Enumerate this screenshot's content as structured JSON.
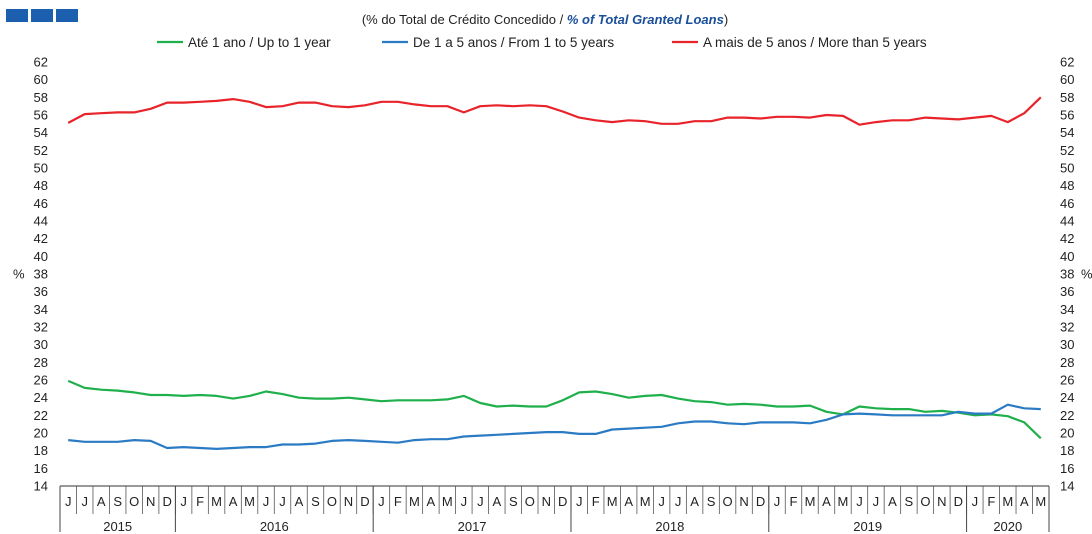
{
  "logo": {
    "colors": [
      "#1b5fae",
      "#1b5fae",
      "#1b5fae"
    ]
  },
  "title": {
    "prefix": "(% do Total de Crédito Concedido  / ",
    "emphasis": "% of Total Granted Loans",
    "suffix": ")"
  },
  "chart_data": {
    "type": "line",
    "ylabel_left": "%",
    "ylabel_right": "%",
    "ylim": [
      14,
      62
    ],
    "yticks": [
      14,
      16,
      18,
      20,
      22,
      24,
      26,
      28,
      30,
      32,
      34,
      36,
      38,
      40,
      42,
      44,
      46,
      48,
      50,
      52,
      54,
      56,
      58,
      60,
      62
    ],
    "months": [
      "J",
      "J",
      "A",
      "S",
      "O",
      "N",
      "D",
      "J",
      "F",
      "M",
      "A",
      "M",
      "J",
      "J",
      "A",
      "S",
      "O",
      "N",
      "D",
      "J",
      "F",
      "M",
      "A",
      "M",
      "J",
      "J",
      "A",
      "S",
      "O",
      "N",
      "D",
      "J",
      "F",
      "M",
      "A",
      "M",
      "J",
      "J",
      "A",
      "S",
      "O",
      "N",
      "D",
      "J",
      "F",
      "M",
      "A",
      "M",
      "J",
      "J",
      "A",
      "S",
      "O",
      "N",
      "D",
      "J",
      "F",
      "M",
      "A",
      "M"
    ],
    "years": [
      {
        "label": "2015",
        "start": 0,
        "count": 7
      },
      {
        "label": "2016",
        "start": 7,
        "count": 12
      },
      {
        "label": "2017",
        "start": 19,
        "count": 12
      },
      {
        "label": "2018",
        "start": 31,
        "count": 12
      },
      {
        "label": "2019",
        "start": 43,
        "count": 12
      },
      {
        "label": "2020",
        "start": 55,
        "count": 5
      }
    ],
    "series": [
      {
        "name": "Até 1 ano / Up to 1 year",
        "color": "#1fb04b",
        "values": [
          25.9,
          25.1,
          24.9,
          24.8,
          24.6,
          24.3,
          24.3,
          24.2,
          24.3,
          24.2,
          23.9,
          24.2,
          24.7,
          24.4,
          24.0,
          23.9,
          23.9,
          24.0,
          23.8,
          23.6,
          23.7,
          23.7,
          23.7,
          23.8,
          24.2,
          23.4,
          23.0,
          23.1,
          23.0,
          23.0,
          23.7,
          24.6,
          24.7,
          24.4,
          24.0,
          24.2,
          24.3,
          23.9,
          23.6,
          23.5,
          23.2,
          23.3,
          23.2,
          23.0,
          23.0,
          23.1,
          22.4,
          22.1,
          23.0,
          22.8,
          22.7,
          22.7,
          22.4,
          22.5,
          22.3,
          22.0,
          22.1,
          21.9,
          21.2,
          19.4
        ]
      },
      {
        "name": "De 1 a 5 anos / From 1 to 5 years",
        "color": "#2b7bc4",
        "values": [
          19.2,
          19.0,
          19.0,
          19.0,
          19.2,
          19.1,
          18.3,
          18.4,
          18.3,
          18.2,
          18.3,
          18.4,
          18.4,
          18.7,
          18.7,
          18.8,
          19.1,
          19.2,
          19.1,
          19.0,
          18.9,
          19.2,
          19.3,
          19.3,
          19.6,
          19.7,
          19.8,
          19.9,
          20.0,
          20.1,
          20.1,
          19.9,
          19.9,
          20.4,
          20.5,
          20.6,
          20.7,
          21.1,
          21.3,
          21.3,
          21.1,
          21.0,
          21.2,
          21.2,
          21.2,
          21.1,
          21.5,
          22.1,
          22.2,
          22.1,
          22.0,
          22.0,
          22.0,
          22.0,
          22.4,
          22.2,
          22.2,
          23.2,
          22.8,
          22.7
        ]
      },
      {
        "name": "A mais de 5 anos / More than 5 years",
        "color": "#e8232a",
        "values": [
          55.1,
          56.1,
          56.2,
          56.3,
          56.3,
          56.7,
          57.4,
          57.4,
          57.5,
          57.6,
          57.8,
          57.5,
          56.9,
          57.0,
          57.4,
          57.4,
          57.0,
          56.9,
          57.1,
          57.5,
          57.5,
          57.2,
          57.0,
          57.0,
          56.3,
          57.0,
          57.1,
          57.0,
          57.1,
          57.0,
          56.4,
          55.7,
          55.4,
          55.2,
          55.4,
          55.3,
          55.0,
          55.0,
          55.3,
          55.3,
          55.7,
          55.7,
          55.6,
          55.8,
          55.8,
          55.7,
          56.0,
          55.9,
          54.9,
          55.2,
          55.4,
          55.4,
          55.7,
          55.6,
          55.5,
          55.7,
          55.9,
          55.2,
          56.2,
          58.0
        ]
      }
    ]
  }
}
